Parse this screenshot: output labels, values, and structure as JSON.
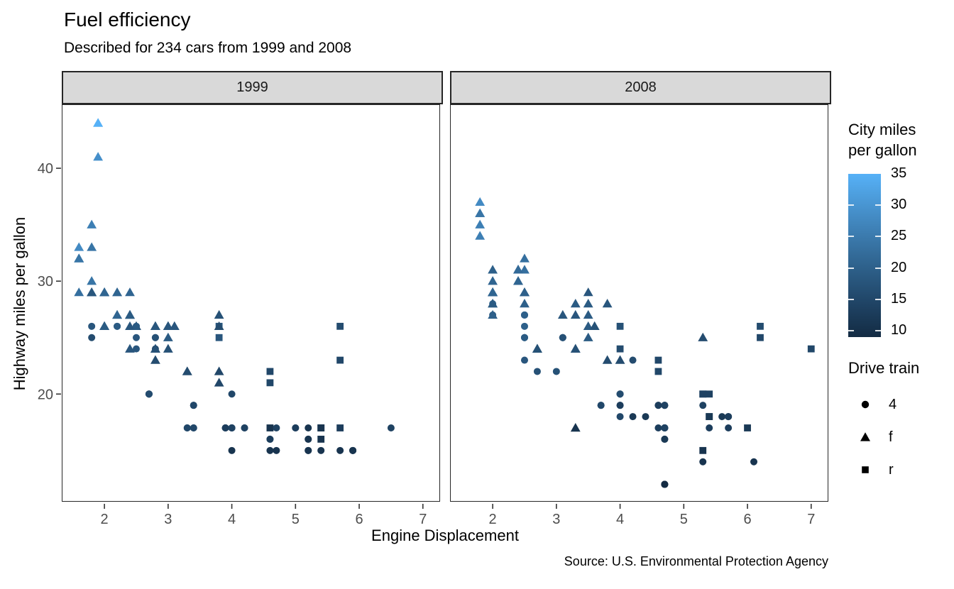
{
  "title": "Fuel efficiency",
  "subtitle": "Described for 234 cars from 1999 and 2008",
  "caption": "Source: U.S. Environmental Protection Agency",
  "chart_data": {
    "type": "scatter",
    "facet_by": "year",
    "facets": [
      "1999",
      "2008"
    ],
    "xlabel": "Engine Displacement",
    "ylabel": "Highway miles per gallon",
    "x_ticks": [
      2,
      3,
      4,
      5,
      6,
      7
    ],
    "y_ticks": [
      20,
      30,
      40
    ],
    "xlim": [
      1.33,
      7.27
    ],
    "ylim": [
      10.4,
      45.6
    ],
    "grid": false,
    "legend_position": "right",
    "color_legend": {
      "title": "City miles per gallon",
      "limits": [
        9,
        35
      ],
      "ticks": [
        35,
        30,
        25,
        20,
        15,
        10
      ],
      "low_color": "#132B43",
      "high_color": "#56B1F7"
    },
    "shape_legend": {
      "title": "Drive train",
      "items": [
        {
          "shape": "circle",
          "label": "4"
        },
        {
          "shape": "triangle",
          "label": "f"
        },
        {
          "shape": "square",
          "label": "r"
        }
      ]
    },
    "point_columns": [
      "displ",
      "hwy",
      "cty",
      "drv",
      "year"
    ],
    "points": [
      [
        1.8,
        29,
        18,
        "f",
        1999
      ],
      [
        1.8,
        29,
        21,
        "f",
        1999
      ],
      [
        2,
        31,
        20,
        "f",
        2008
      ],
      [
        2,
        30,
        21,
        "f",
        2008
      ],
      [
        2.8,
        26,
        16,
        "f",
        1999
      ],
      [
        2.8,
        26,
        18,
        "f",
        1999
      ],
      [
        3.1,
        27,
        18,
        "f",
        2008
      ],
      [
        1.8,
        26,
        18,
        "4",
        1999
      ],
      [
        1.8,
        25,
        16,
        "4",
        1999
      ],
      [
        2,
        28,
        20,
        "4",
        2008
      ],
      [
        2,
        27,
        19,
        "4",
        2008
      ],
      [
        2.8,
        25,
        15,
        "4",
        1999
      ],
      [
        2.8,
        25,
        17,
        "4",
        1999
      ],
      [
        3.1,
        25,
        17,
        "4",
        2008
      ],
      [
        3.1,
        25,
        15,
        "4",
        2008
      ],
      [
        2.8,
        24,
        15,
        "4",
        1999
      ],
      [
        3.1,
        25,
        17,
        "4",
        2008
      ],
      [
        4.2,
        23,
        16,
        "4",
        2008
      ],
      [
        5.3,
        20,
        14,
        "r",
        2008
      ],
      [
        5.3,
        15,
        11,
        "r",
        2008
      ],
      [
        5.3,
        20,
        14,
        "r",
        2008
      ],
      [
        5.7,
        17,
        13,
        "r",
        1999
      ],
      [
        6,
        17,
        12,
        "r",
        2008
      ],
      [
        5.7,
        26,
        16,
        "r",
        1999
      ],
      [
        5.7,
        23,
        15,
        "r",
        1999
      ],
      [
        6.2,
        26,
        16,
        "r",
        2008
      ],
      [
        6.2,
        25,
        15,
        "r",
        2008
      ],
      [
        7,
        24,
        15,
        "r",
        2008
      ],
      [
        5.3,
        19,
        14,
        "4",
        2008
      ],
      [
        5.3,
        14,
        11,
        "4",
        2008
      ],
      [
        5.7,
        15,
        11,
        "4",
        1999
      ],
      [
        6.5,
        17,
        14,
        "4",
        1999
      ],
      [
        2.4,
        27,
        19,
        "f",
        1999
      ],
      [
        2.4,
        30,
        22,
        "f",
        2008
      ],
      [
        3.1,
        26,
        18,
        "f",
        1999
      ],
      [
        3.5,
        29,
        18,
        "f",
        2008
      ],
      [
        3.6,
        26,
        17,
        "f",
        2008
      ],
      [
        2.4,
        24,
        18,
        "f",
        1999
      ],
      [
        3,
        24,
        17,
        "f",
        1999
      ],
      [
        3.3,
        22,
        16,
        "f",
        1999
      ],
      [
        3.3,
        22,
        16,
        "f",
        1999
      ],
      [
        3.3,
        24,
        17,
        "f",
        2008
      ],
      [
        3.3,
        24,
        17,
        "f",
        2008
      ],
      [
        3.3,
        17,
        11,
        "f",
        2008
      ],
      [
        3.8,
        22,
        15,
        "f",
        1999
      ],
      [
        3.8,
        21,
        15,
        "f",
        1999
      ],
      [
        3.8,
        23,
        16,
        "f",
        2008
      ],
      [
        4,
        23,
        16,
        "f",
        2008
      ],
      [
        3.7,
        19,
        15,
        "4",
        2008
      ],
      [
        3.9,
        17,
        13,
        "4",
        1999
      ],
      [
        3.9,
        17,
        14,
        "4",
        1999
      ],
      [
        4.7,
        19,
        14,
        "4",
        2008
      ],
      [
        4.7,
        19,
        14,
        "4",
        2008
      ],
      [
        4.7,
        12,
        9,
        "4",
        2008
      ],
      [
        4.7,
        17,
        13,
        "4",
        2008
      ],
      [
        5.2,
        17,
        11,
        "4",
        1999
      ],
      [
        5.2,
        15,
        11,
        "4",
        1999
      ],
      [
        3.9,
        17,
        13,
        "4",
        1999
      ],
      [
        4.7,
        17,
        13,
        "4",
        2008
      ],
      [
        4.7,
        12,
        9,
        "4",
        2008
      ],
      [
        4.7,
        17,
        13,
        "4",
        2008
      ],
      [
        5.2,
        16,
        11,
        "4",
        1999
      ],
      [
        5.7,
        18,
        13,
        "4",
        2008
      ],
      [
        5.9,
        15,
        11,
        "4",
        1999
      ],
      [
        4.7,
        16,
        12,
        "4",
        2008
      ],
      [
        4.7,
        12,
        9,
        "4",
        2008
      ],
      [
        4.7,
        17,
        13,
        "4",
        2008
      ],
      [
        4.7,
        17,
        13,
        "4",
        2008
      ],
      [
        4.7,
        16,
        12,
        "4",
        2008
      ],
      [
        5.2,
        15,
        11,
        "4",
        1999
      ],
      [
        5.2,
        16,
        11,
        "4",
        1999
      ],
      [
        5.7,
        17,
        13,
        "4",
        2008
      ],
      [
        5.9,
        15,
        11,
        "4",
        1999
      ],
      [
        5.9,
        15,
        11,
        "4",
        1999
      ],
      [
        4.6,
        17,
        11,
        "r",
        1999
      ],
      [
        5.4,
        17,
        11,
        "r",
        1999
      ],
      [
        5.4,
        18,
        12,
        "r",
        2008
      ],
      [
        4,
        17,
        14,
        "4",
        1999
      ],
      [
        4,
        17,
        15,
        "4",
        1999
      ],
      [
        4,
        17,
        14,
        "4",
        1999
      ],
      [
        4,
        19,
        13,
        "4",
        2008
      ],
      [
        4.6,
        19,
        13,
        "4",
        2008
      ],
      [
        5,
        17,
        13,
        "4",
        1999
      ],
      [
        4.2,
        17,
        14,
        "4",
        1999
      ],
      [
        4.2,
        17,
        14,
        "4",
        1999
      ],
      [
        4.6,
        16,
        13,
        "4",
        1999
      ],
      [
        4.6,
        16,
        13,
        "4",
        1999
      ],
      [
        4.6,
        17,
        13,
        "4",
        2008
      ],
      [
        5.4,
        15,
        11,
        "4",
        1999
      ],
      [
        5.4,
        17,
        13,
        "4",
        2008
      ],
      [
        3.8,
        26,
        18,
        "r",
        1999
      ],
      [
        3.8,
        25,
        18,
        "r",
        1999
      ],
      [
        4,
        26,
        17,
        "r",
        2008
      ],
      [
        4,
        24,
        16,
        "r",
        2008
      ],
      [
        4.6,
        21,
        15,
        "r",
        1999
      ],
      [
        4.6,
        22,
        15,
        "r",
        1999
      ],
      [
        4.6,
        23,
        15,
        "r",
        2008
      ],
      [
        4.6,
        22,
        15,
        "r",
        2008
      ],
      [
        5.4,
        20,
        14,
        "r",
        2008
      ],
      [
        1.6,
        33,
        28,
        "f",
        1999
      ],
      [
        1.6,
        32,
        24,
        "f",
        1999
      ],
      [
        1.6,
        32,
        25,
        "f",
        1999
      ],
      [
        1.6,
        29,
        23,
        "f",
        1999
      ],
      [
        1.6,
        32,
        24,
        "f",
        1999
      ],
      [
        1.8,
        34,
        26,
        "f",
        2008
      ],
      [
        1.8,
        36,
        25,
        "f",
        2008
      ],
      [
        1.8,
        36,
        24,
        "f",
        2008
      ],
      [
        2,
        29,
        21,
        "f",
        2008
      ],
      [
        2.4,
        26,
        18,
        "f",
        1999
      ],
      [
        2.4,
        27,
        18,
        "f",
        1999
      ],
      [
        2.4,
        30,
        21,
        "f",
        2008
      ],
      [
        2.4,
        31,
        21,
        "f",
        2008
      ],
      [
        2.5,
        26,
        18,
        "f",
        1999
      ],
      [
        2.5,
        26,
        18,
        "f",
        1999
      ],
      [
        3.3,
        28,
        19,
        "f",
        2008
      ],
      [
        2,
        26,
        19,
        "f",
        1999
      ],
      [
        2,
        29,
        19,
        "f",
        1999
      ],
      [
        2,
        28,
        20,
        "f",
        2008
      ],
      [
        2,
        27,
        20,
        "f",
        2008
      ],
      [
        2.7,
        24,
        17,
        "f",
        2008
      ],
      [
        2.7,
        24,
        16,
        "f",
        2008
      ],
      [
        2.7,
        24,
        17,
        "f",
        2008
      ],
      [
        3,
        22,
        17,
        "4",
        2008
      ],
      [
        3.7,
        19,
        15,
        "4",
        2008
      ],
      [
        4,
        20,
        15,
        "4",
        1999
      ],
      [
        4.7,
        17,
        14,
        "4",
        1999
      ],
      [
        4.7,
        12,
        9,
        "4",
        2008
      ],
      [
        4.7,
        19,
        14,
        "4",
        2008
      ],
      [
        5.7,
        18,
        13,
        "4",
        2008
      ],
      [
        6.1,
        14,
        11,
        "4",
        2008
      ],
      [
        4,
        15,
        11,
        "4",
        1999
      ],
      [
        4.2,
        18,
        12,
        "4",
        2008
      ],
      [
        4.4,
        18,
        12,
        "4",
        2008
      ],
      [
        4.6,
        15,
        11,
        "4",
        1999
      ],
      [
        5.4,
        17,
        11,
        "r",
        1999
      ],
      [
        5.4,
        16,
        11,
        "r",
        1999
      ],
      [
        5.4,
        18,
        12,
        "r",
        2008
      ],
      [
        4,
        17,
        14,
        "4",
        1999
      ],
      [
        4,
        19,
        13,
        "4",
        2008
      ],
      [
        4.6,
        19,
        13,
        "4",
        2008
      ],
      [
        5,
        17,
        13,
        "4",
        1999
      ],
      [
        2.4,
        29,
        21,
        "f",
        1999
      ],
      [
        2.4,
        27,
        19,
        "f",
        1999
      ],
      [
        2.5,
        31,
        23,
        "f",
        2008
      ],
      [
        2.5,
        32,
        23,
        "f",
        2008
      ],
      [
        3.5,
        27,
        19,
        "f",
        2008
      ],
      [
        3.5,
        26,
        19,
        "f",
        2008
      ],
      [
        3,
        26,
        18,
        "f",
        1999
      ],
      [
        3,
        25,
        19,
        "f",
        1999
      ],
      [
        3.5,
        25,
        19,
        "f",
        2008
      ],
      [
        3.3,
        17,
        14,
        "4",
        1999
      ],
      [
        3.3,
        17,
        15,
        "4",
        1999
      ],
      [
        4,
        20,
        14,
        "4",
        2008
      ],
      [
        5.6,
        18,
        12,
        "4",
        2008
      ],
      [
        3.1,
        26,
        18,
        "f",
        1999
      ],
      [
        3.8,
        26,
        16,
        "f",
        1999
      ],
      [
        3.8,
        27,
        17,
        "f",
        1999
      ],
      [
        3.8,
        28,
        18,
        "f",
        2008
      ],
      [
        5.3,
        25,
        16,
        "f",
        2008
      ],
      [
        2.5,
        25,
        18,
        "4",
        1999
      ],
      [
        2.5,
        24,
        18,
        "4",
        1999
      ],
      [
        2.5,
        27,
        20,
        "4",
        2008
      ],
      [
        2.5,
        25,
        19,
        "4",
        2008
      ],
      [
        2.5,
        26,
        20,
        "4",
        2008
      ],
      [
        2.5,
        23,
        18,
        "4",
        2008
      ],
      [
        2.2,
        26,
        21,
        "4",
        1999
      ],
      [
        2.2,
        26,
        19,
        "4",
        1999
      ],
      [
        2.5,
        26,
        19,
        "4",
        1999
      ],
      [
        2.5,
        26,
        19,
        "4",
        1999
      ],
      [
        2.5,
        25,
        20,
        "4",
        2008
      ],
      [
        2.5,
        27,
        20,
        "4",
        2008
      ],
      [
        2.5,
        25,
        19,
        "4",
        2008
      ],
      [
        2.5,
        27,
        20,
        "4",
        2008
      ],
      [
        2.7,
        20,
        15,
        "4",
        1999
      ],
      [
        2.7,
        20,
        16,
        "4",
        1999
      ],
      [
        3.4,
        19,
        15,
        "4",
        1999
      ],
      [
        3.4,
        17,
        15,
        "4",
        1999
      ],
      [
        4,
        20,
        16,
        "4",
        2008
      ],
      [
        4.7,
        17,
        14,
        "4",
        2008
      ],
      [
        2.2,
        29,
        21,
        "f",
        1999
      ],
      [
        2.2,
        27,
        21,
        "f",
        1999
      ],
      [
        2.4,
        31,
        21,
        "f",
        2008
      ],
      [
        2.4,
        31,
        21,
        "f",
        2008
      ],
      [
        3,
        26,
        18,
        "f",
        1999
      ],
      [
        3,
        26,
        18,
        "f",
        1999
      ],
      [
        3.5,
        28,
        19,
        "f",
        2008
      ],
      [
        2.2,
        27,
        21,
        "f",
        1999
      ],
      [
        2.2,
        29,
        21,
        "f",
        1999
      ],
      [
        2.4,
        31,
        21,
        "f",
        2008
      ],
      [
        2.4,
        31,
        22,
        "f",
        2008
      ],
      [
        3,
        26,
        18,
        "f",
        1999
      ],
      [
        3,
        26,
        18,
        "f",
        1999
      ],
      [
        3.3,
        27,
        18,
        "f",
        2008
      ],
      [
        1.8,
        30,
        24,
        "f",
        1999
      ],
      [
        1.8,
        33,
        24,
        "f",
        1999
      ],
      [
        1.8,
        35,
        26,
        "f",
        1999
      ],
      [
        1.8,
        37,
        28,
        "f",
        2008
      ],
      [
        1.8,
        35,
        26,
        "f",
        2008
      ],
      [
        4.7,
        15,
        11,
        "4",
        1999
      ],
      [
        5.7,
        18,
        13,
        "4",
        2008
      ],
      [
        2.7,
        20,
        15,
        "4",
        1999
      ],
      [
        2.7,
        20,
        16,
        "4",
        1999
      ],
      [
        2.7,
        22,
        17,
        "4",
        2008
      ],
      [
        3.4,
        17,
        15,
        "4",
        1999
      ],
      [
        3.4,
        19,
        15,
        "4",
        1999
      ],
      [
        4,
        18,
        15,
        "4",
        2008
      ],
      [
        4,
        20,
        16,
        "4",
        2008
      ],
      [
        2,
        29,
        21,
        "f",
        1999
      ],
      [
        2,
        26,
        19,
        "f",
        1999
      ],
      [
        2,
        29,
        21,
        "f",
        2008
      ],
      [
        2,
        29,
        22,
        "f",
        2008
      ],
      [
        2.8,
        24,
        17,
        "f",
        1999
      ],
      [
        1.9,
        44,
        33,
        "f",
        1999
      ],
      [
        2,
        29,
        21,
        "f",
        1999
      ],
      [
        2,
        26,
        19,
        "f",
        1999
      ],
      [
        2,
        29,
        22,
        "f",
        2008
      ],
      [
        2,
        29,
        21,
        "f",
        2008
      ],
      [
        2.5,
        29,
        21,
        "f",
        2008
      ],
      [
        2.5,
        29,
        21,
        "f",
        2008
      ],
      [
        2.8,
        23,
        16,
        "f",
        1999
      ],
      [
        2.8,
        24,
        17,
        "f",
        1999
      ],
      [
        1.9,
        44,
        35,
        "f",
        1999
      ],
      [
        1.9,
        41,
        29,
        "f",
        1999
      ],
      [
        2,
        29,
        21,
        "f",
        1999
      ],
      [
        2,
        26,
        19,
        "f",
        1999
      ],
      [
        2.5,
        28,
        20,
        "f",
        2008
      ],
      [
        2.5,
        29,
        20,
        "f",
        2008
      ],
      [
        1.8,
        29,
        21,
        "f",
        1999
      ],
      [
        1.8,
        29,
        18,
        "f",
        1999
      ],
      [
        2,
        28,
        19,
        "f",
        2008
      ],
      [
        2,
        29,
        21,
        "f",
        2008
      ],
      [
        2.8,
        26,
        16,
        "f",
        1999
      ],
      [
        2.8,
        26,
        18,
        "f",
        1999
      ],
      [
        3.6,
        26,
        17,
        "f",
        2008
      ]
    ]
  }
}
